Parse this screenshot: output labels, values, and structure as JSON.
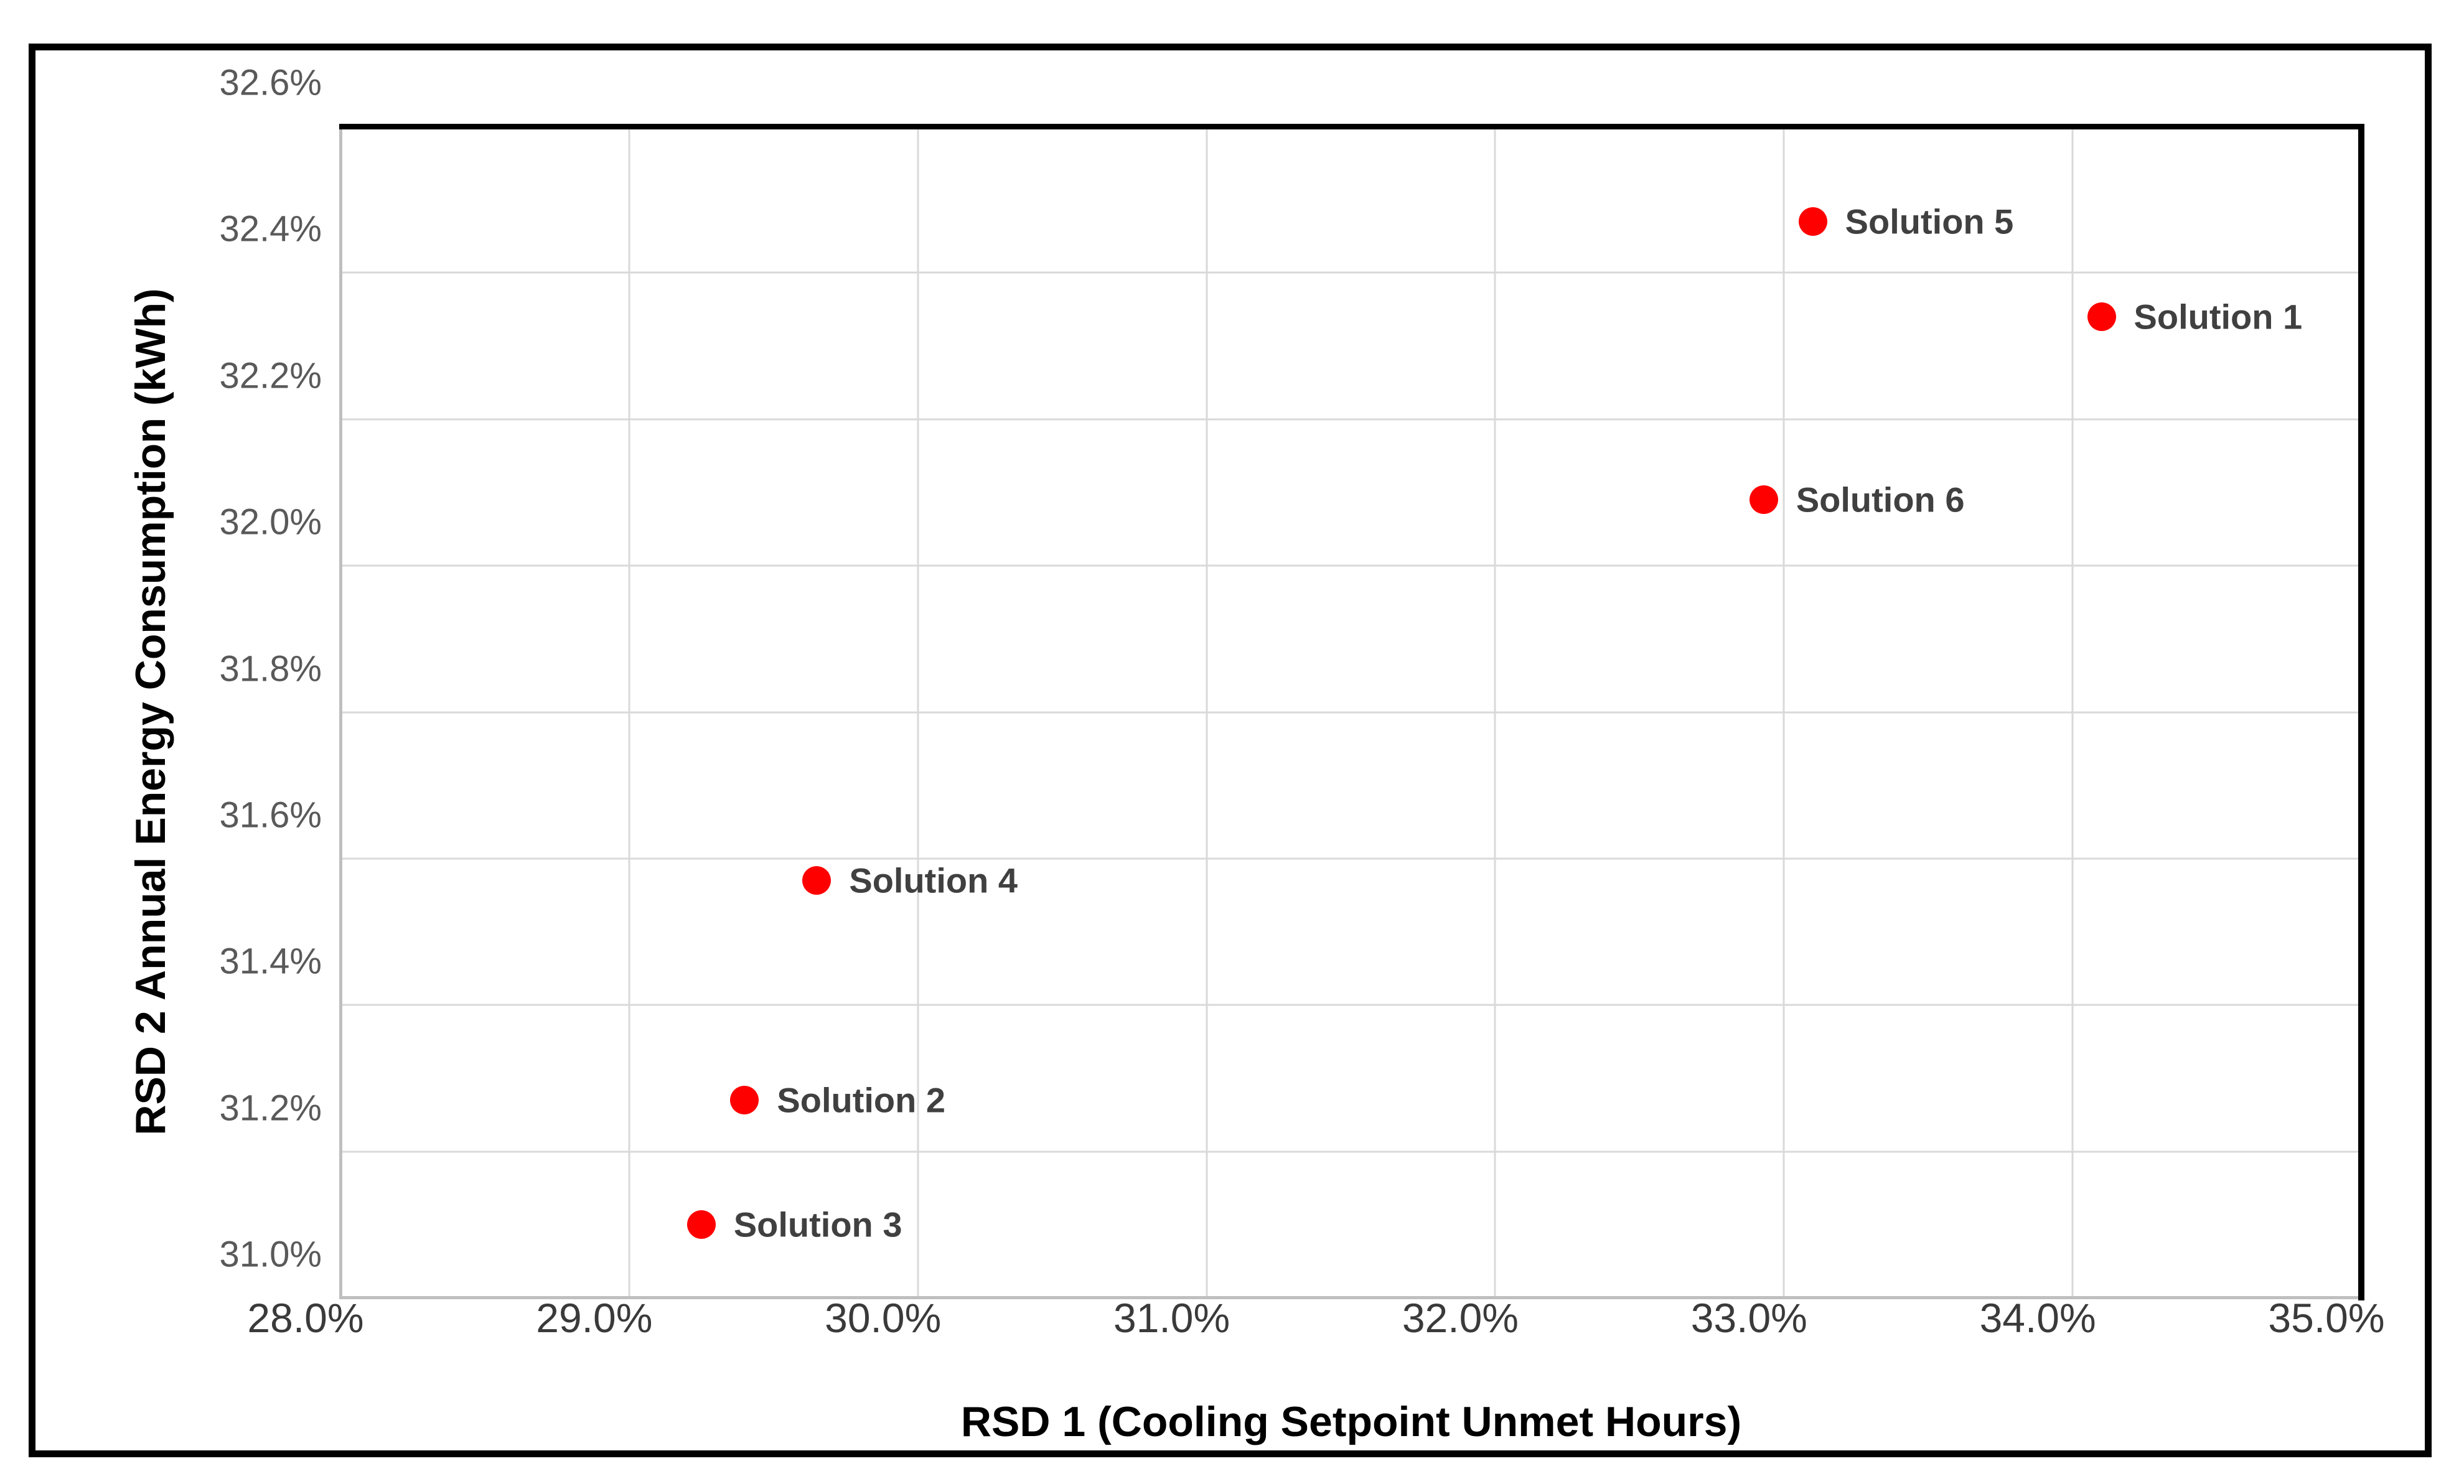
{
  "chart_data": {
    "type": "scatter",
    "title": "",
    "xlabel": "RSD 1 (Cooling Setpoint Unmet Hours)",
    "ylabel": "RSD 2 Annual Energy Consumption (kWh)",
    "xlim": [
      28.0,
      35.0
    ],
    "ylim": [
      31.0,
      32.6
    ],
    "x_tick_labels": [
      "28.0%",
      "29.0%",
      "30.0%",
      "31.0%",
      "32.0%",
      "33.0%",
      "34.0%",
      "35.0%"
    ],
    "x_tick_values": [
      28.0,
      29.0,
      30.0,
      31.0,
      32.0,
      33.0,
      34.0,
      35.0
    ],
    "y_tick_labels": [
      "31.0%",
      "31.2%",
      "31.4%",
      "31.6%",
      "31.8%",
      "32.0%",
      "32.2%",
      "32.4%",
      "32.6%"
    ],
    "y_tick_values": [
      31.0,
      31.2,
      31.4,
      31.6,
      31.8,
      32.0,
      32.2,
      32.4,
      32.6
    ],
    "grid": true,
    "legend_position": "none",
    "points": [
      {
        "label": "Solution 1",
        "x": 34.1,
        "y": 32.34
      },
      {
        "label": "Solution 2",
        "x": 29.4,
        "y": 31.27
      },
      {
        "label": "Solution 3",
        "x": 29.25,
        "y": 31.1
      },
      {
        "label": "Solution 4",
        "x": 29.65,
        "y": 31.57
      },
      {
        "label": "Solution 5",
        "x": 33.1,
        "y": 32.47
      },
      {
        "label": "Solution 6",
        "x": 32.93,
        "y": 32.09
      }
    ]
  },
  "colors": {
    "marker": "#ff0000",
    "point_label": "#404040",
    "y_tick": "#595959",
    "x_tick": "#3a3a3a",
    "gridline": "#d9d9d9",
    "axis_line": "#bfbfbf",
    "plot_border": "#000000",
    "frame_border": "#000000",
    "background": "#ffffff"
  }
}
